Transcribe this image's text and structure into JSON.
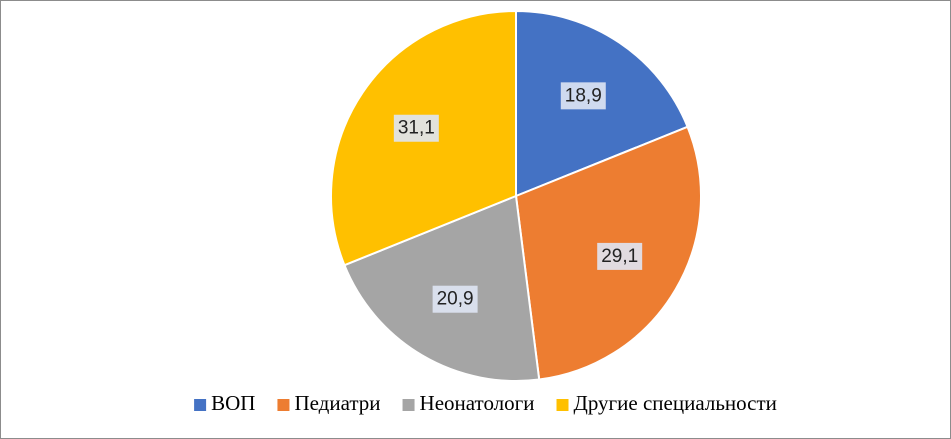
{
  "chart_data": {
    "type": "pie",
    "categories": [
      "ВОП",
      "Педиатри",
      "Неонатологи",
      "Другие специальности"
    ],
    "values": [
      18.9,
      29.1,
      20.9,
      31.1
    ],
    "value_labels": [
      "18,9",
      "29,1",
      "20,9",
      "31,1"
    ],
    "colors": [
      "#4472c4",
      "#ed7d31",
      "#a5a5a5",
      "#ffc000"
    ],
    "legend": "bottom"
  }
}
